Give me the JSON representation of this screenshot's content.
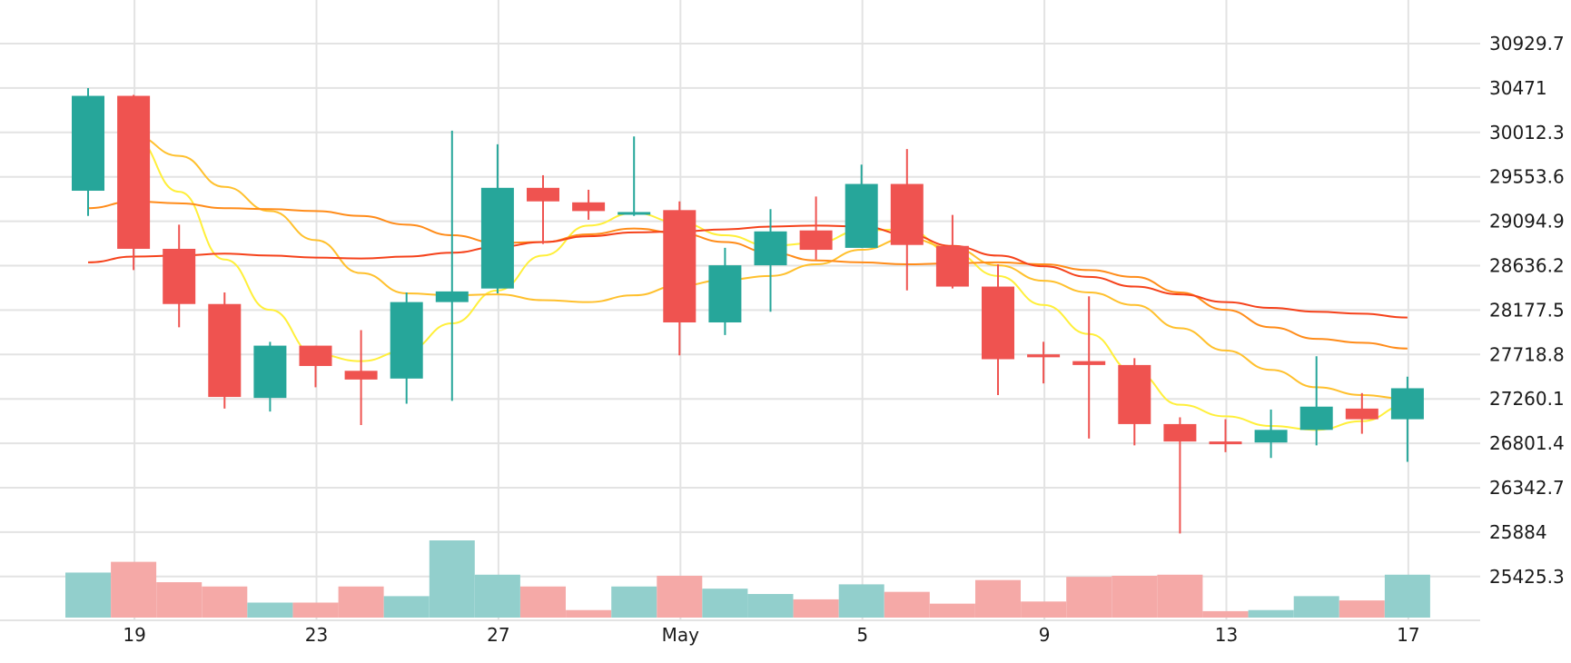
{
  "chart_data": {
    "type": "candlestick",
    "title": "",
    "y_ticks": [
      "30929.7",
      "30471",
      "30012.3",
      "29553.6",
      "29094.9",
      "28636.2",
      "28177.5",
      "27718.8",
      "27260.1",
      "26801.4",
      "26342.7",
      "25884",
      "25425.3"
    ],
    "x_ticks": [
      {
        "index": 1,
        "label": "19"
      },
      {
        "index": 5,
        "label": "23"
      },
      {
        "index": 9,
        "label": "27"
      },
      {
        "index": 13,
        "label": "May"
      },
      {
        "index": 17,
        "label": "5"
      },
      {
        "index": 21,
        "label": "9"
      },
      {
        "index": 25,
        "label": "13"
      },
      {
        "index": 29,
        "label": "17"
      }
    ],
    "ylim": [
      24967,
      31388
    ],
    "grid": true,
    "colors": {
      "up": "#26a69a",
      "down": "#ef5350",
      "volume_up": "#92cfcc",
      "volume_down": "#f5a9a7",
      "ma_yellow": "#ffef3a",
      "ma_gold": "#ffc02d",
      "ma_orange": "#ff8c1a",
      "ma_red": "#f5421b"
    },
    "candles": [
      {
        "open": 29410,
        "high": 30470,
        "low": 29150,
        "close": 30390,
        "volume": 420
      },
      {
        "open": 30390,
        "high": 30400,
        "low": 28590,
        "close": 28810,
        "volume": 520
      },
      {
        "open": 28810,
        "high": 29060,
        "low": 28000,
        "close": 28240,
        "volume": 330
      },
      {
        "open": 28240,
        "high": 28360,
        "low": 27160,
        "close": 27280,
        "volume": 290
      },
      {
        "open": 27270,
        "high": 27850,
        "low": 27130,
        "close": 27810,
        "volume": 140
      },
      {
        "open": 27810,
        "high": 27810,
        "low": 27380,
        "close": 27600,
        "volume": 140
      },
      {
        "open": 27550,
        "high": 27970,
        "low": 26990,
        "close": 27460,
        "volume": 290
      },
      {
        "open": 27470,
        "high": 28360,
        "low": 27210,
        "close": 28260,
        "volume": 200
      },
      {
        "open": 28260,
        "high": 30030,
        "low": 27240,
        "close": 28370,
        "volume": 720
      },
      {
        "open": 28400,
        "high": 29890,
        "low": 28350,
        "close": 29440,
        "volume": 400
      },
      {
        "open": 29440,
        "high": 29570,
        "low": 28860,
        "close": 29300,
        "volume": 290
      },
      {
        "open": 29290,
        "high": 29420,
        "low": 29110,
        "close": 29200,
        "volume": 70
      },
      {
        "open": 29180,
        "high": 29970,
        "low": 29150,
        "close": 29190,
        "volume": 290
      },
      {
        "open": 29210,
        "high": 29300,
        "low": 27710,
        "close": 28050,
        "volume": 390
      },
      {
        "open": 28050,
        "high": 28820,
        "low": 27920,
        "close": 28640,
        "volume": 270
      },
      {
        "open": 28640,
        "high": 29220,
        "low": 28160,
        "close": 28990,
        "volume": 220
      },
      {
        "open": 29000,
        "high": 29350,
        "low": 28700,
        "close": 28800,
        "volume": 170
      },
      {
        "open": 28820,
        "high": 29680,
        "low": 28820,
        "close": 29480,
        "volume": 310
      },
      {
        "open": 29480,
        "high": 29840,
        "low": 28380,
        "close": 28850,
        "volume": 240
      },
      {
        "open": 28840,
        "high": 29160,
        "low": 28400,
        "close": 28420,
        "volume": 130
      },
      {
        "open": 28420,
        "high": 28650,
        "low": 27300,
        "close": 27670,
        "volume": 350
      },
      {
        "open": 27720,
        "high": 27850,
        "low": 27420,
        "close": 27690,
        "volume": 150
      },
      {
        "open": 27650,
        "high": 28320,
        "low": 26850,
        "close": 27610,
        "volume": 380
      },
      {
        "open": 27610,
        "high": 27680,
        "low": 26780,
        "close": 27000,
        "volume": 390
      },
      {
        "open": 27000,
        "high": 27070,
        "low": 25870,
        "close": 26820,
        "volume": 400
      },
      {
        "open": 26820,
        "high": 27050,
        "low": 26710,
        "close": 26800,
        "volume": 60
      },
      {
        "open": 26810,
        "high": 27150,
        "low": 26650,
        "close": 26940,
        "volume": 70
      },
      {
        "open": 26940,
        "high": 27700,
        "low": 26780,
        "close": 27180,
        "volume": 200
      },
      {
        "open": 27160,
        "high": 27320,
        "low": 26900,
        "close": 27050,
        "volume": 160
      },
      {
        "open": 27050,
        "high": 27490,
        "low": 26610,
        "close": 27370,
        "volume": 400
      }
    ],
    "moving_averages": [
      {
        "color_key": "ma_yellow",
        "values": [
          null,
          29960,
          29400,
          28700,
          28180,
          27720,
          27650,
          27760,
          28040,
          28380,
          28740,
          29050,
          29180,
          29080,
          28950,
          28840,
          28870,
          29000,
          29010,
          28770,
          28530,
          28230,
          27930,
          27540,
          27200,
          27080,
          26980,
          26940,
          27030,
          27200
        ]
      },
      {
        "color_key": "ma_gold",
        "values": [
          null,
          29980,
          29770,
          29450,
          29200,
          28900,
          28560,
          28350,
          28330,
          28340,
          28280,
          28260,
          28330,
          28430,
          28490,
          28530,
          28650,
          28800,
          28920,
          28820,
          28640,
          28480,
          28360,
          28230,
          27990,
          27760,
          27560,
          27380,
          27300,
          27260
        ]
      },
      {
        "color_key": "ma_orange",
        "values": [
          29230,
          29300,
          29280,
          29230,
          29220,
          29200,
          29150,
          29060,
          28950,
          28870,
          28880,
          28960,
          29020,
          28970,
          28880,
          28770,
          28690,
          28670,
          28650,
          28660,
          28670,
          28650,
          28590,
          28520,
          28360,
          28180,
          28000,
          27880,
          27840,
          27780
        ]
      },
      {
        "color_key": "ma_red",
        "values": [
          28670,
          28730,
          28740,
          28760,
          28740,
          28720,
          28710,
          28730,
          28770,
          28830,
          28880,
          28940,
          28980,
          28990,
          29010,
          29040,
          29050,
          29040,
          28960,
          28840,
          28740,
          28630,
          28520,
          28420,
          28340,
          28260,
          28200,
          28160,
          28140,
          28100
        ]
      }
    ]
  }
}
